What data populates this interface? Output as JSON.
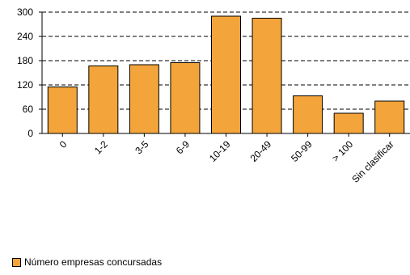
{
  "chart_data": {
    "type": "bar",
    "categories": [
      "0",
      "1-2",
      "3-5",
      "6-9",
      "10-19",
      "20-49",
      "50-99",
      "> 100",
      "Sin clasificar"
    ],
    "series": [
      {
        "name": "Número empresas concursadas",
        "values": [
          115,
          167,
          170,
          175,
          290,
          285,
          93,
          50,
          80
        ],
        "color": "#f3a43a"
      }
    ],
    "ylim": [
      0,
      300
    ],
    "yticks": [
      0,
      60,
      120,
      180,
      240,
      300
    ],
    "grid": true,
    "legend_position": "bottom-left"
  }
}
